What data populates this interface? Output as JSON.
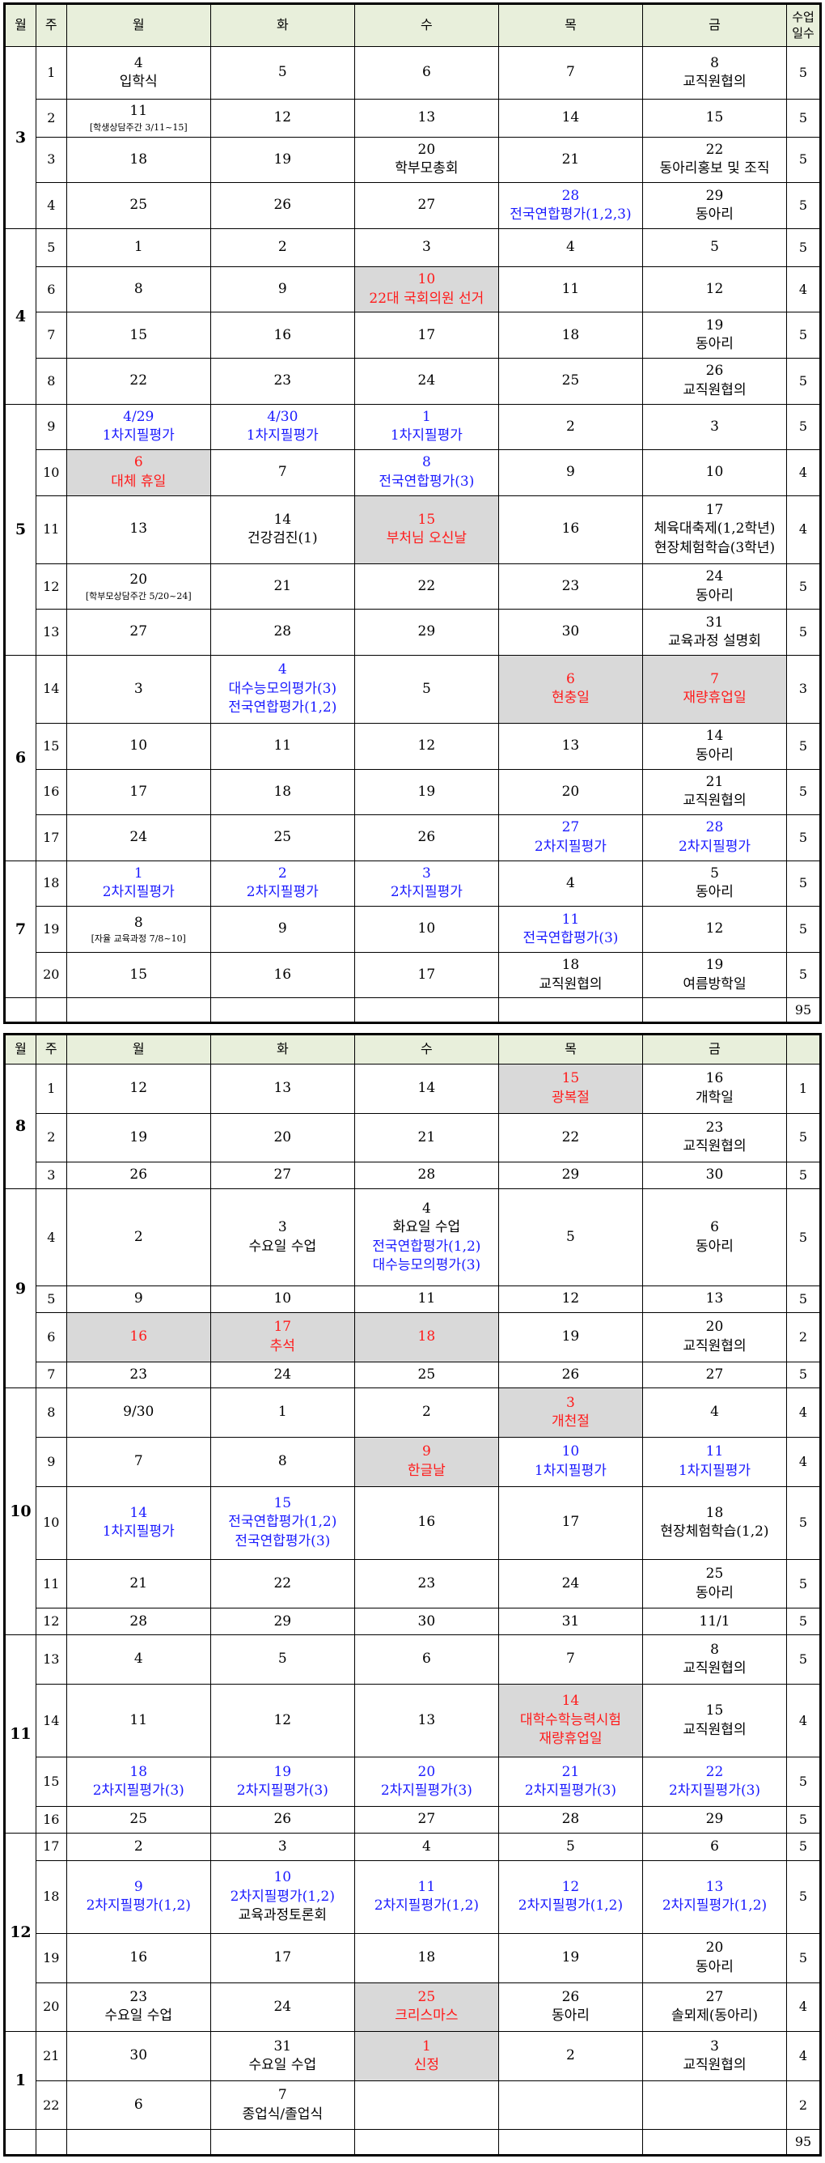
{
  "headers": [
    "월",
    "주",
    "월",
    "화",
    "수",
    "목",
    "금",
    "수업일수"
  ],
  "sem1": {
    "months": [
      "3",
      "4",
      "5",
      "6",
      "7"
    ],
    "weeks": [
      {
        "m": "3",
        "w": "1",
        "c": [
          {
            "d": "4",
            "t": "입학식"
          },
          {
            "d": "5"
          },
          {
            "d": "6"
          },
          {
            "d": "7"
          },
          {
            "d": "8",
            "t": "교직원협의"
          }
        ],
        "n": "5"
      },
      {
        "w": "2",
        "c": [
          {
            "d": "11",
            "t": "[학생상담주간 3/11~15]",
            "s": 1
          },
          {
            "d": "12"
          },
          {
            "d": "13"
          },
          {
            "d": "14"
          },
          {
            "d": "15"
          }
        ],
        "n": "5"
      },
      {
        "w": "3",
        "c": [
          {
            "d": "18"
          },
          {
            "d": "19"
          },
          {
            "d": "20",
            "t": "학부모총회"
          },
          {
            "d": "21"
          },
          {
            "d": "22",
            "t": "동아리홍보 및 조직"
          }
        ],
        "n": "5"
      },
      {
        "w": "4",
        "c": [
          {
            "d": "25"
          },
          {
            "d": "26"
          },
          {
            "d": "27"
          },
          {
            "d": "28",
            "t": "전국연합평가(1,2,3)",
            "cl": "blue"
          },
          {
            "d": "29",
            "t": "동아리"
          }
        ],
        "n": "5"
      },
      {
        "m": "4",
        "w": "5",
        "c": [
          {
            "d": "1"
          },
          {
            "d": "2"
          },
          {
            "d": "3"
          },
          {
            "d": "4"
          },
          {
            "d": "5"
          }
        ],
        "n": "5"
      },
      {
        "w": "6",
        "c": [
          {
            "d": "8"
          },
          {
            "d": "9"
          },
          {
            "d": "10",
            "t": "22대 국회의원 선거",
            "cl": "red",
            "g": 1
          },
          {
            "d": "11"
          },
          {
            "d": "12"
          }
        ],
        "n": "4"
      },
      {
        "w": "7",
        "c": [
          {
            "d": "15"
          },
          {
            "d": "16"
          },
          {
            "d": "17"
          },
          {
            "d": "18"
          },
          {
            "d": "19",
            "t": "동아리"
          }
        ],
        "n": "5"
      },
      {
        "w": "8",
        "c": [
          {
            "d": "22"
          },
          {
            "d": "23"
          },
          {
            "d": "24"
          },
          {
            "d": "25"
          },
          {
            "d": "26",
            "t": "교직원협의"
          }
        ],
        "n": "5"
      },
      {
        "m": "5",
        "w": "9",
        "c": [
          {
            "d": "4/29",
            "t": "1차지필평가",
            "cl": "blue"
          },
          {
            "d": "4/30",
            "t": "1차지필평가",
            "cl": "blue"
          },
          {
            "d": "1",
            "t": "1차지필평가",
            "cl": "blue"
          },
          {
            "d": "2"
          },
          {
            "d": "3"
          }
        ],
        "n": "5"
      },
      {
        "w": "10",
        "c": [
          {
            "d": "6",
            "t": "대체 휴일",
            "cl": "red",
            "g": 1
          },
          {
            "d": "7"
          },
          {
            "d": "8",
            "t": "전국연합평가(3)",
            "cl": "blue"
          },
          {
            "d": "9"
          },
          {
            "d": "10"
          }
        ],
        "n": "4"
      },
      {
        "w": "11",
        "c": [
          {
            "d": "13"
          },
          {
            "d": "14",
            "t": "건강검진(1)"
          },
          {
            "d": "15",
            "t": "부처님 오신날",
            "cl": "red",
            "g": 1
          },
          {
            "d": "16"
          },
          {
            "d": "17",
            "t": "체육대축제(1,2학년)",
            "t2": "현장체험학습(3학년)"
          }
        ],
        "n": "4"
      },
      {
        "w": "12",
        "c": [
          {
            "d": "20",
            "t": "[학부모상담주간 5/20~24]",
            "s": 1
          },
          {
            "d": "21"
          },
          {
            "d": "22"
          },
          {
            "d": "23"
          },
          {
            "d": "24",
            "t": "동아리"
          }
        ],
        "n": "5"
      },
      {
        "w": "13",
        "c": [
          {
            "d": "27"
          },
          {
            "d": "28"
          },
          {
            "d": "29"
          },
          {
            "d": "30"
          },
          {
            "d": "31",
            "t": "교육과정 설명회"
          }
        ],
        "n": "5"
      },
      {
        "m": "6",
        "w": "14",
        "c": [
          {
            "d": "3"
          },
          {
            "d": "4",
            "t": "대수능모의평가(3)",
            "t2": "전국연합평가(1,2)",
            "cl": "blue"
          },
          {
            "d": "5"
          },
          {
            "d": "6",
            "t": "현충일",
            "cl": "red",
            "g": 1
          },
          {
            "d": "7",
            "t": "재량휴업일",
            "cl": "red",
            "g": 1
          }
        ],
        "n": "3"
      },
      {
        "w": "15",
        "c": [
          {
            "d": "10"
          },
          {
            "d": "11"
          },
          {
            "d": "12"
          },
          {
            "d": "13"
          },
          {
            "d": "14",
            "t": "동아리"
          }
        ],
        "n": "5"
      },
      {
        "w": "16",
        "c": [
          {
            "d": "17"
          },
          {
            "d": "18"
          },
          {
            "d": "19"
          },
          {
            "d": "20"
          },
          {
            "d": "21",
            "t": "교직원협의"
          }
        ],
        "n": "5"
      },
      {
        "w": "17",
        "c": [
          {
            "d": "24"
          },
          {
            "d": "25"
          },
          {
            "d": "26"
          },
          {
            "d": "27",
            "t": "2차지필평가",
            "cl": "blue"
          },
          {
            "d": "28",
            "t": "2차지필평가",
            "cl": "blue"
          }
        ],
        "n": "5"
      },
      {
        "m": "7",
        "w": "18",
        "c": [
          {
            "d": "1",
            "t": "2차지필평가",
            "cl": "blue"
          },
          {
            "d": "2",
            "t": "2차지필평가",
            "cl": "blue"
          },
          {
            "d": "3",
            "t": "2차지필평가",
            "cl": "blue"
          },
          {
            "d": "4"
          },
          {
            "d": "5",
            "t": "동아리"
          }
        ],
        "n": "5"
      },
      {
        "w": "19",
        "c": [
          {
            "d": "8",
            "t": "[자율 교육과정 7/8~10]",
            "s": 1
          },
          {
            "d": "9"
          },
          {
            "d": "10"
          },
          {
            "d": "11",
            "t": "전국연합평가(3)",
            "cl": "blue"
          },
          {
            "d": "12"
          }
        ],
        "n": "5"
      },
      {
        "w": "20",
        "c": [
          {
            "d": "15"
          },
          {
            "d": "16"
          },
          {
            "d": "17"
          },
          {
            "d": "18",
            "t": "교직원협의"
          },
          {
            "d": "19",
            "t": "여름방학일"
          }
        ],
        "n": "5"
      }
    ],
    "total": "95"
  },
  "sem2": {
    "weeks": [
      {
        "m": "8",
        "w": "1",
        "c": [
          {
            "d": "12"
          },
          {
            "d": "13"
          },
          {
            "d": "14"
          },
          {
            "d": "15",
            "t": "광복절",
            "cl": "red",
            "g": 1
          },
          {
            "d": "16",
            "t": "개학일"
          }
        ],
        "n": "1"
      },
      {
        "w": "2",
        "c": [
          {
            "d": "19"
          },
          {
            "d": "20"
          },
          {
            "d": "21"
          },
          {
            "d": "22"
          },
          {
            "d": "23",
            "t": "교직원협의"
          }
        ],
        "n": "5"
      },
      {
        "w": "3",
        "c": [
          {
            "d": "26"
          },
          {
            "d": "27"
          },
          {
            "d": "28"
          },
          {
            "d": "29"
          },
          {
            "d": "30"
          }
        ],
        "n": "5"
      },
      {
        "m": "9",
        "w": "4",
        "c": [
          {
            "d": "2"
          },
          {
            "d": "3",
            "t": "수요일 수업"
          },
          {
            "d": "4",
            "t": "화요일 수업",
            "t2": "전국연합평가(1,2)",
            "t3": "대수능모의평가(3)",
            "mix": 1
          },
          {
            "d": "5"
          },
          {
            "d": "6",
            "t": "동아리"
          }
        ],
        "n": "5"
      },
      {
        "w": "5",
        "c": [
          {
            "d": "9"
          },
          {
            "d": "10"
          },
          {
            "d": "11"
          },
          {
            "d": "12"
          },
          {
            "d": "13"
          }
        ],
        "n": "5"
      },
      {
        "w": "6",
        "c": [
          {
            "d": "16",
            "cl": "red",
            "g": 1
          },
          {
            "d": "17",
            "t": "추석",
            "cl": "red",
            "g": 1
          },
          {
            "d": "18",
            "cl": "red",
            "g": 1
          },
          {
            "d": "19"
          },
          {
            "d": "20",
            "t": "교직원협의"
          }
        ],
        "n": "2"
      },
      {
        "w": "7",
        "c": [
          {
            "d": "23"
          },
          {
            "d": "24"
          },
          {
            "d": "25"
          },
          {
            "d": "26"
          },
          {
            "d": "27"
          }
        ],
        "n": "5"
      },
      {
        "m": "10",
        "w": "8",
        "c": [
          {
            "d": "9/30"
          },
          {
            "d": "1"
          },
          {
            "d": "2"
          },
          {
            "d": "3",
            "t": "개천절",
            "cl": "red",
            "g": 1
          },
          {
            "d": "4"
          }
        ],
        "n": "4"
      },
      {
        "w": "9",
        "c": [
          {
            "d": "7"
          },
          {
            "d": "8"
          },
          {
            "d": "9",
            "t": "한글날",
            "cl": "red",
            "g": 1
          },
          {
            "d": "10",
            "t": "1차지필평가",
            "cl": "blue"
          },
          {
            "d": "11",
            "t": "1차지필평가",
            "cl": "blue"
          }
        ],
        "n": "4"
      },
      {
        "w": "10",
        "c": [
          {
            "d": "14",
            "t": "1차지필평가",
            "cl": "blue"
          },
          {
            "d": "15",
            "t": "전국연합평가(1,2)",
            "t2": "전국연합평가(3)",
            "cl": "blue"
          },
          {
            "d": "16"
          },
          {
            "d": "17"
          },
          {
            "d": "18",
            "t": "현장체험학습(1,2)"
          }
        ],
        "n": "5"
      },
      {
        "w": "11",
        "c": [
          {
            "d": "21"
          },
          {
            "d": "22"
          },
          {
            "d": "23"
          },
          {
            "d": "24"
          },
          {
            "d": "25",
            "t": "동아리"
          }
        ],
        "n": "5"
      },
      {
        "w": "12",
        "c": [
          {
            "d": "28"
          },
          {
            "d": "29"
          },
          {
            "d": "30"
          },
          {
            "d": "31"
          },
          {
            "d": "11/1"
          }
        ],
        "n": "5"
      },
      {
        "m": "11",
        "w": "13",
        "c": [
          {
            "d": "4"
          },
          {
            "d": "5"
          },
          {
            "d": "6"
          },
          {
            "d": "7"
          },
          {
            "d": "8",
            "t": "교직원협의"
          }
        ],
        "n": "5"
      },
      {
        "w": "14",
        "c": [
          {
            "d": "11"
          },
          {
            "d": "12"
          },
          {
            "d": "13"
          },
          {
            "d": "14",
            "t": "대학수학능력시험",
            "t2": "재량휴업일",
            "cl": "red",
            "g": 1
          },
          {
            "d": "15",
            "t": "교직원협의"
          }
        ],
        "n": "4"
      },
      {
        "w": "15",
        "c": [
          {
            "d": "18",
            "t": "2차지필평가(3)",
            "cl": "blue"
          },
          {
            "d": "19",
            "t": "2차지필평가(3)",
            "cl": "blue"
          },
          {
            "d": "20",
            "t": "2차지필평가(3)",
            "cl": "blue"
          },
          {
            "d": "21",
            "t": "2차지필평가(3)",
            "cl": "blue"
          },
          {
            "d": "22",
            "t": "2차지필평가(3)",
            "cl": "blue"
          }
        ],
        "n": "5"
      },
      {
        "w": "16",
        "c": [
          {
            "d": "25"
          },
          {
            "d": "26"
          },
          {
            "d": "27"
          },
          {
            "d": "28"
          },
          {
            "d": "29"
          }
        ],
        "n": "5"
      },
      {
        "m": "12",
        "w": "17",
        "c": [
          {
            "d": "2"
          },
          {
            "d": "3"
          },
          {
            "d": "4"
          },
          {
            "d": "5"
          },
          {
            "d": "6"
          }
        ],
        "n": "5"
      },
      {
        "w": "18",
        "c": [
          {
            "d": "9",
            "t": "2차지필평가(1,2)",
            "cl": "blue"
          },
          {
            "d": "10",
            "t": "2차지필평가(1,2)",
            "t2": "교육과정토론회",
            "cl": "blue",
            "mix2": 1
          },
          {
            "d": "11",
            "t": "2차지필평가(1,2)",
            "cl": "blue"
          },
          {
            "d": "12",
            "t": "2차지필평가(1,2)",
            "cl": "blue"
          },
          {
            "d": "13",
            "t": "2차지필평가(1,2)",
            "cl": "blue"
          }
        ],
        "n": "5"
      },
      {
        "w": "19",
        "c": [
          {
            "d": "16"
          },
          {
            "d": "17"
          },
          {
            "d": "18"
          },
          {
            "d": "19"
          },
          {
            "d": "20",
            "t": "동아리"
          }
        ],
        "n": "5"
      },
      {
        "w": "20",
        "c": [
          {
            "d": "23",
            "t": "수요일 수업"
          },
          {
            "d": "24"
          },
          {
            "d": "25",
            "t": "크리스마스",
            "cl": "red",
            "g": 1
          },
          {
            "d": "26",
            "t": "동아리"
          },
          {
            "d": "27",
            "t": "솔뫼제(동아리)"
          }
        ],
        "n": "4"
      },
      {
        "m": "1",
        "w": "21",
        "c": [
          {
            "d": "30"
          },
          {
            "d": "31",
            "t": "수요일 수업"
          },
          {
            "d": "1",
            "t": "신정",
            "cl": "red",
            "g": 1
          },
          {
            "d": "2"
          },
          {
            "d": "3",
            "t": "교직원협의"
          }
        ],
        "n": "4"
      },
      {
        "w": "22",
        "c": [
          {
            "d": "6"
          },
          {
            "d": "7",
            "t": "종업식/졸업식"
          },
          {},
          {},
          {}
        ],
        "n": "2"
      }
    ],
    "total": "95"
  }
}
